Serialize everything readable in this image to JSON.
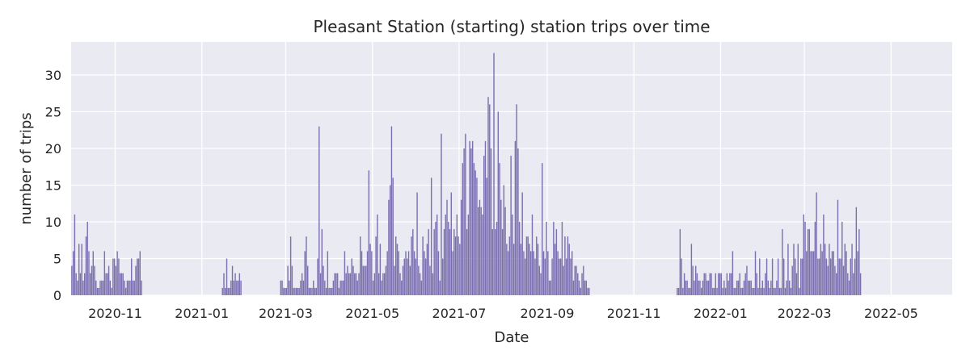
{
  "chart_data": {
    "type": "bar",
    "title": "Pleasant Station (starting) station trips over time",
    "xlabel": "Date",
    "ylabel": "number of trips",
    "xlim": [
      "2020-10-01",
      "2022-06-13"
    ],
    "ylim": [
      0,
      34.5
    ],
    "x_ticks": [
      "2020-11-01",
      "2021-01-01",
      "2021-03-01",
      "2021-05-01",
      "2021-07-01",
      "2021-09-01",
      "2021-11-01",
      "2022-01-01",
      "2022-03-01",
      "2022-05-01"
    ],
    "x_tick_labels": [
      "2020-11",
      "2021-01",
      "2021-03",
      "2021-05",
      "2021-07",
      "2021-09",
      "2021-11",
      "2022-01",
      "2022-03",
      "2022-05"
    ],
    "y_ticks": [
      0,
      5,
      10,
      15,
      20,
      25,
      30
    ],
    "grid": true,
    "bar_color": "#7b6fb0",
    "background_color": "#eaeaf2",
    "series": [
      {
        "segments": [
          {
            "start": "2020-10-01",
            "values": [
              4,
              6,
              11,
              3,
              2,
              7,
              3,
              7,
              2,
              3,
              8,
              10,
              6,
              3,
              4,
              6,
              4,
              2,
              1,
              1,
              2,
              2,
              2,
              6,
              3,
              3,
              4,
              2,
              1,
              5,
              5,
              4,
              6,
              5,
              3,
              3,
              3,
              2,
              1,
              2,
              2,
              2,
              5,
              2,
              2,
              4,
              5,
              5,
              6,
              2
            ]
          },
          {
            "start": "2021-01-15",
            "values": [
              1,
              3,
              1,
              5,
              1,
              1,
              2,
              4,
              2,
              3,
              2,
              2,
              3,
              2
            ]
          },
          {
            "start": "2021-02-25",
            "values": [
              2,
              2,
              1,
              1,
              1,
              4,
              2,
              8,
              4,
              1,
              1,
              1,
              1,
              1,
              2,
              3,
              2,
              6,
              8,
              4,
              1,
              1,
              1,
              2,
              1,
              1,
              5,
              23,
              3,
              9,
              4,
              2,
              1,
              6,
              1,
              1,
              1,
              2,
              3,
              3,
              3,
              1,
              2,
              2,
              2,
              6,
              3,
              4,
              3,
              3,
              5,
              4,
              3,
              3,
              2,
              3,
              8,
              6,
              4,
              4,
              4,
              6,
              17,
              7,
              6,
              2,
              3,
              8,
              11,
              3,
              7,
              2,
              3,
              3,
              4,
              6,
              13,
              15,
              23,
              16,
              4,
              8,
              7,
              6,
              3,
              2,
              4,
              5,
              6,
              5,
              6,
              4,
              8,
              9,
              6,
              5,
              14,
              4,
              3,
              2,
              8,
              6,
              5,
              7,
              9,
              4,
              16,
              3,
              9,
              10,
              11,
              6,
              2,
              22,
              5,
              9,
              11,
              13,
              10,
              9,
              14,
              6,
              9,
              8,
              11,
              8,
              7,
              13,
              18,
              20,
              22,
              9,
              11,
              21,
              20,
              21,
              18,
              17,
              16,
              12,
              13,
              12,
              11,
              19,
              21,
              16,
              27,
              26,
              20,
              9,
              33,
              9,
              10,
              25,
              18,
              13,
              9,
              15,
              12,
              7,
              6,
              8,
              19,
              11,
              7,
              21,
              26,
              20,
              10,
              7,
              14,
              6,
              5,
              8,
              8,
              7,
              6,
              11,
              6,
              5,
              8,
              7,
              4,
              3,
              18,
              6,
              5,
              10,
              6,
              2,
              2,
              5,
              10,
              7,
              9,
              6,
              5,
              5,
              10,
              4,
              8,
              5,
              8,
              7,
              5,
              6,
              2,
              4,
              4,
              3,
              2,
              1,
              3,
              4,
              2,
              2,
              1,
              1
            ]
          },
          {
            "start": "2021-12-01",
            "values": [
              1,
              1,
              9,
              5,
              1,
              3,
              2,
              2,
              1,
              1,
              7,
              4,
              2,
              4,
              3,
              2,
              2,
              1,
              2,
              3,
              3,
              2,
              2,
              3,
              3,
              1,
              1,
              3,
              1,
              3,
              3,
              3,
              1,
              2,
              1,
              3,
              2,
              3,
              3,
              6,
              1,
              1,
              2,
              2,
              3,
              1,
              1,
              2,
              3,
              4,
              2,
              2,
              2,
              1,
              1,
              6,
              3,
              1,
              5,
              1,
              2,
              1,
              3,
              5,
              2,
              1,
              2,
              5,
              1,
              1,
              2,
              5,
              1,
              1,
              9,
              5,
              1,
              2,
              7,
              2,
              1,
              4,
              7,
              5,
              3,
              7,
              1,
              5,
              5,
              11,
              10,
              6,
              9,
              9,
              6,
              6,
              6,
              10,
              14,
              5,
              5,
              7,
              6,
              11,
              7,
              5,
              4,
              7,
              5,
              6,
              6,
              4,
              3,
              13,
              5,
              5,
              10,
              4,
              7,
              6,
              3,
              2,
              5,
              7,
              3,
              5,
              12,
              6,
              9,
              3
            ]
          }
        ]
      }
    ]
  }
}
